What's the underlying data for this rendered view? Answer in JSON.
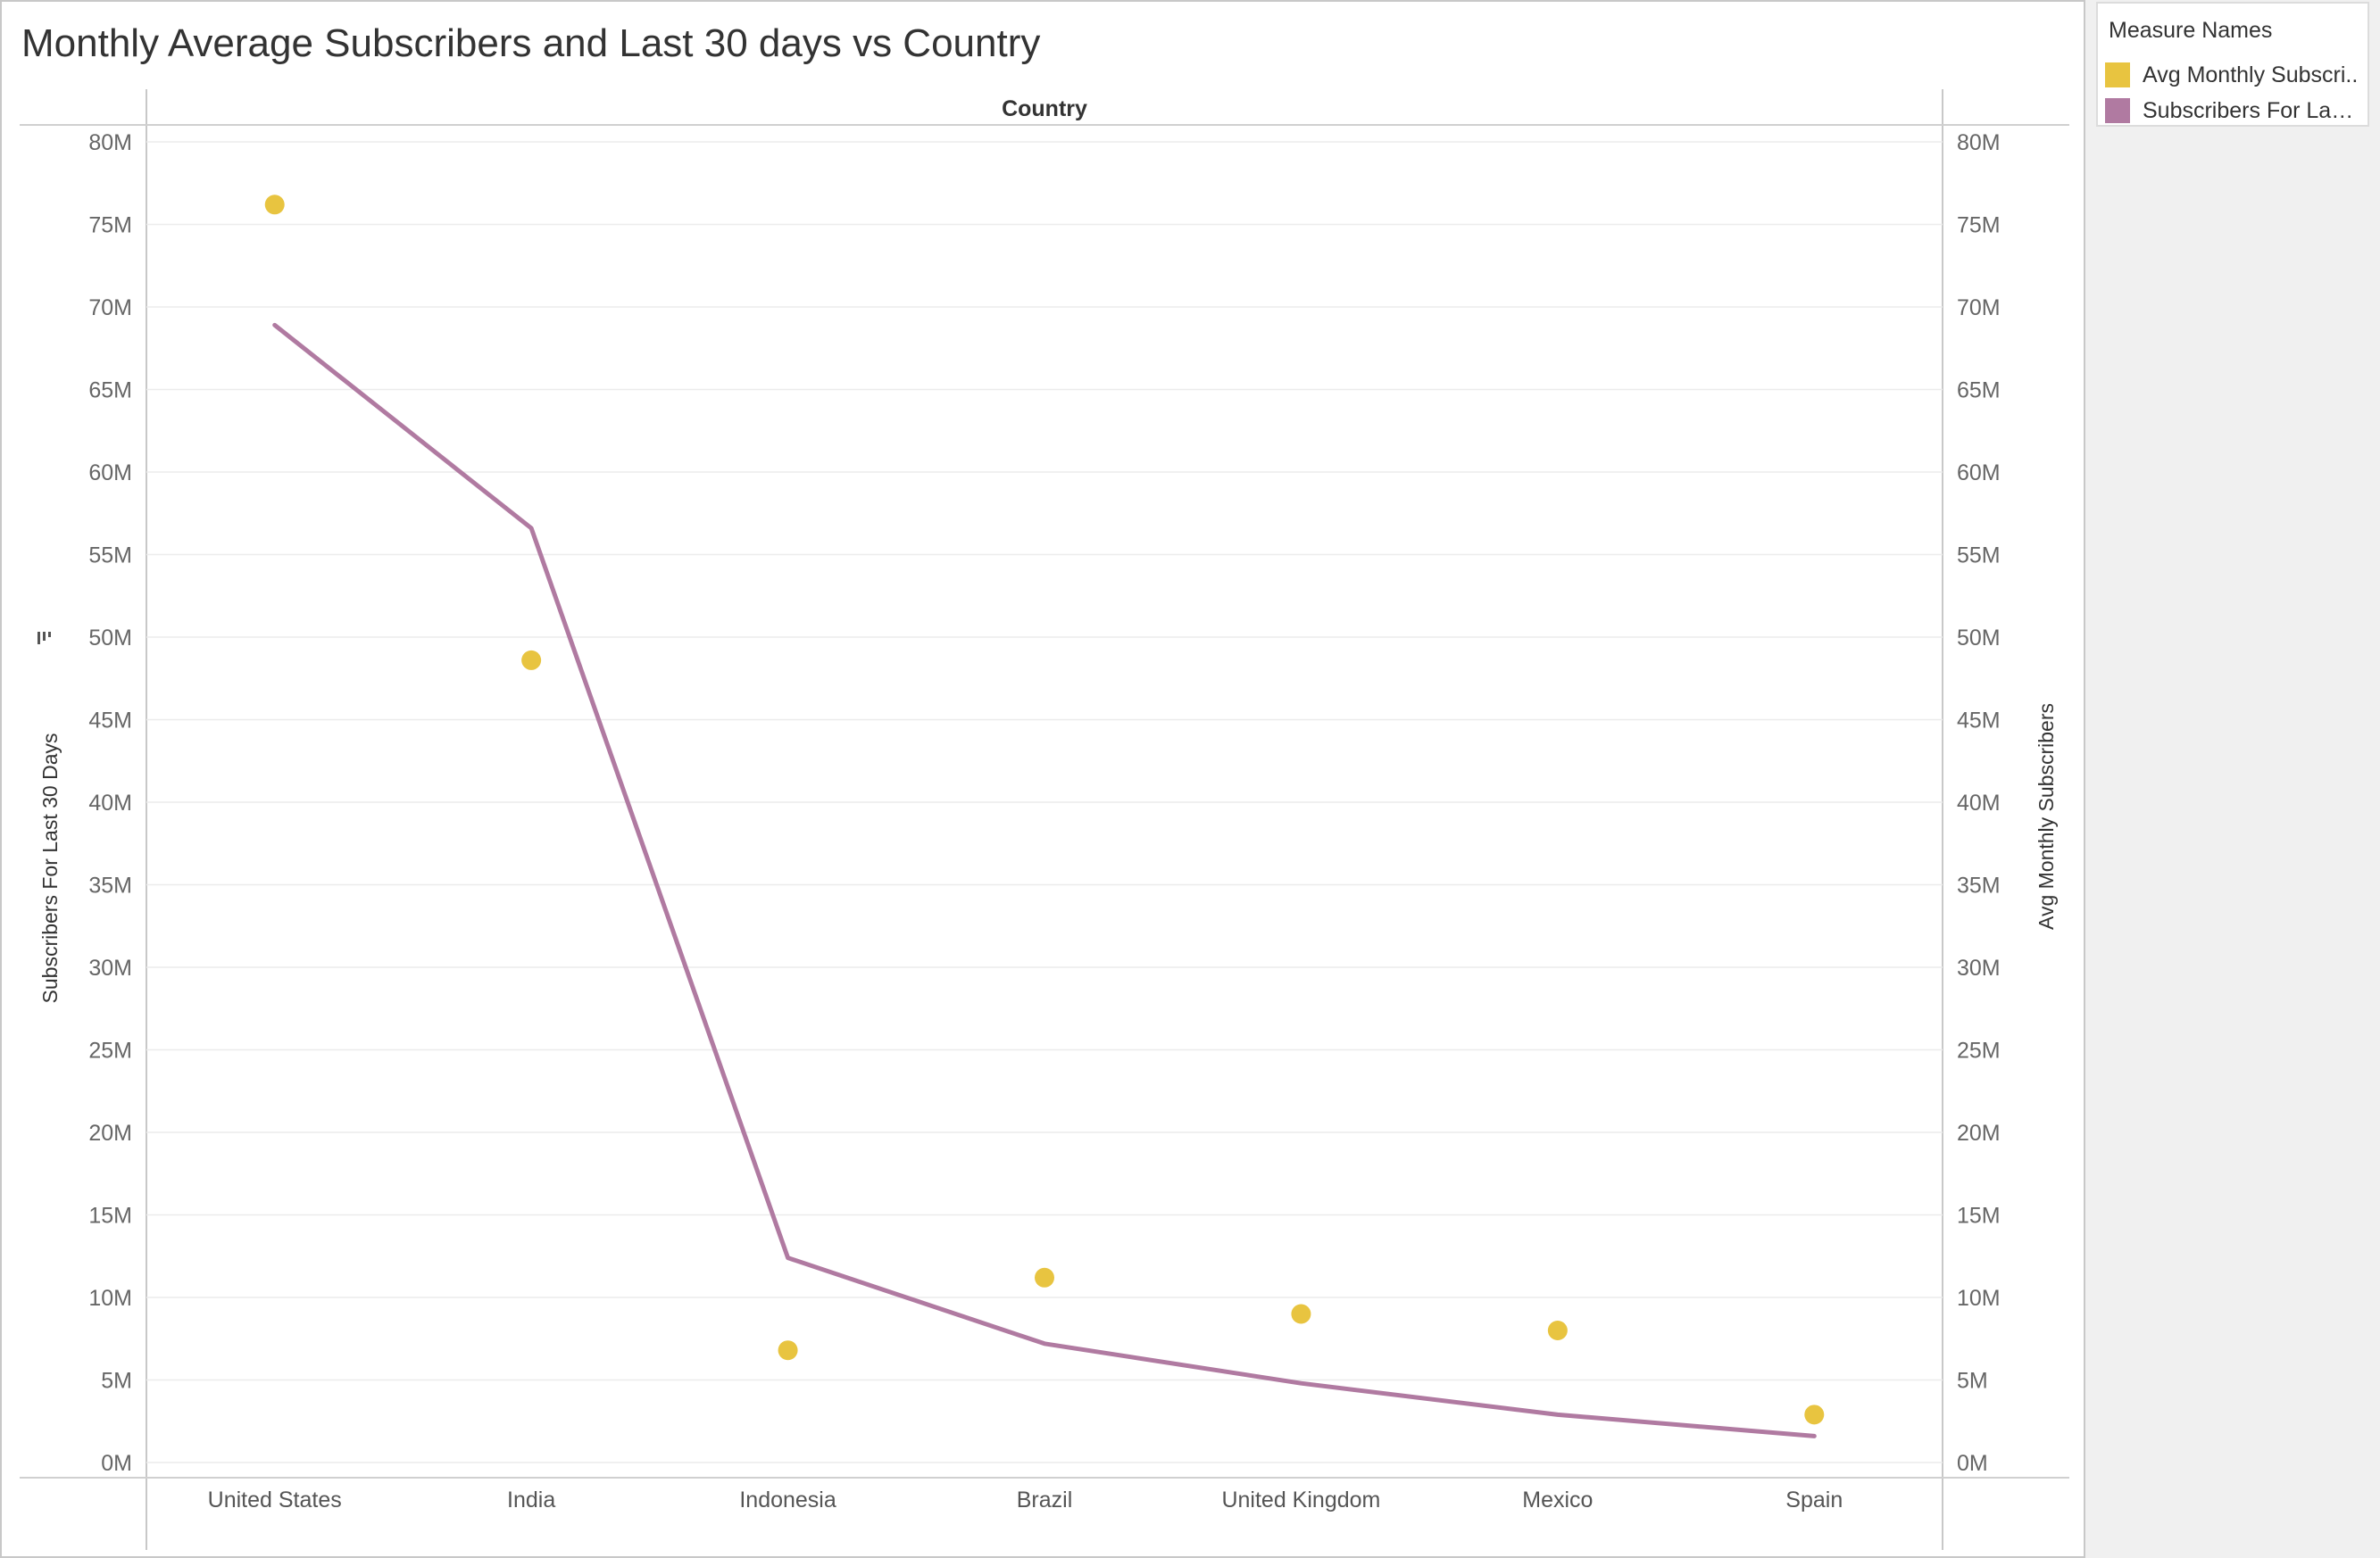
{
  "title": "Monthly Average Subscribers and Last 30 days vs Country",
  "legend": {
    "title": "Measure Names",
    "items": [
      {
        "label": "Avg Monthly Subscri..",
        "color": "#E8C440"
      },
      {
        "label": "Subscribers For Last ..",
        "color": "#B07AA1"
      }
    ]
  },
  "chart_data": {
    "type": "line",
    "header": "Country",
    "categories": [
      "United States",
      "India",
      "Indonesia",
      "Brazil",
      "United Kingdom",
      "Mexico",
      "Spain"
    ],
    "series": [
      {
        "name": "Subscribers For Last 30 Days",
        "mark": "line",
        "axis": "left",
        "color": "#B07AA1",
        "values": [
          68.9,
          56.6,
          12.4,
          7.2,
          4.8,
          2.9,
          1.6
        ]
      },
      {
        "name": "Avg Monthly Subscribers",
        "mark": "circle",
        "axis": "right",
        "color": "#E8C440",
        "values": [
          76.2,
          48.6,
          6.8,
          11.2,
          9.0,
          8.0,
          2.9
        ]
      }
    ],
    "ylabel_left": "Subscribers For Last 30 Days",
    "ylabel_right": "Avg Monthly Subscribers",
    "ylim": [
      0,
      80
    ],
    "yticks": [
      0,
      5,
      10,
      15,
      20,
      25,
      30,
      35,
      40,
      45,
      50,
      55,
      60,
      65,
      70,
      75,
      80
    ],
    "ytick_suffix": "M",
    "grid": true,
    "legend_position": "top-right"
  }
}
